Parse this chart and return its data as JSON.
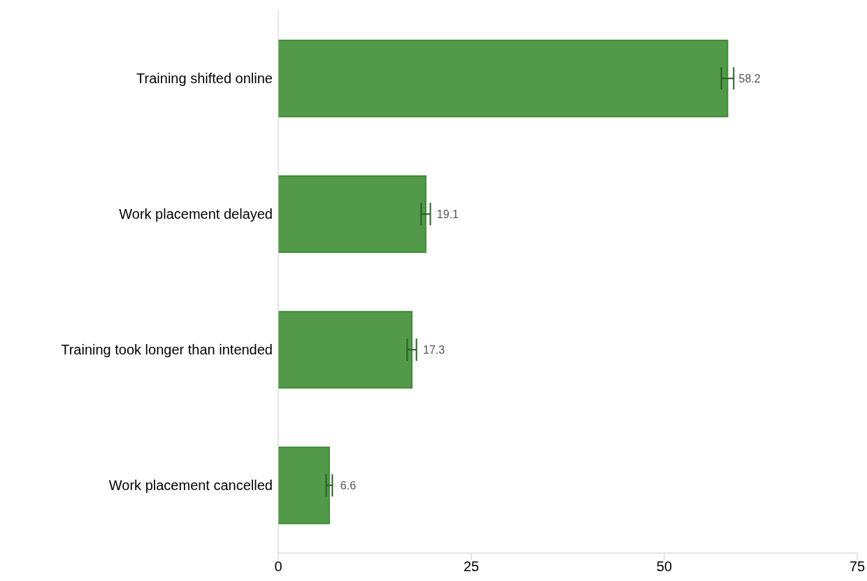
{
  "chart_data": {
    "type": "bar",
    "orientation": "horizontal",
    "categories": [
      "Training shifted online",
      "Work placement delayed",
      "Training took longer than intended",
      "Work placement cancelled"
    ],
    "values": [
      58.2,
      19.1,
      17.3,
      6.6
    ],
    "errors": [
      0.8,
      0.6,
      0.6,
      0.4
    ],
    "color": "#529a4a",
    "xlim": [
      0,
      75
    ],
    "xticks": [
      0,
      25,
      50,
      75
    ],
    "data_labels": true,
    "grid": false,
    "legend": false
  }
}
